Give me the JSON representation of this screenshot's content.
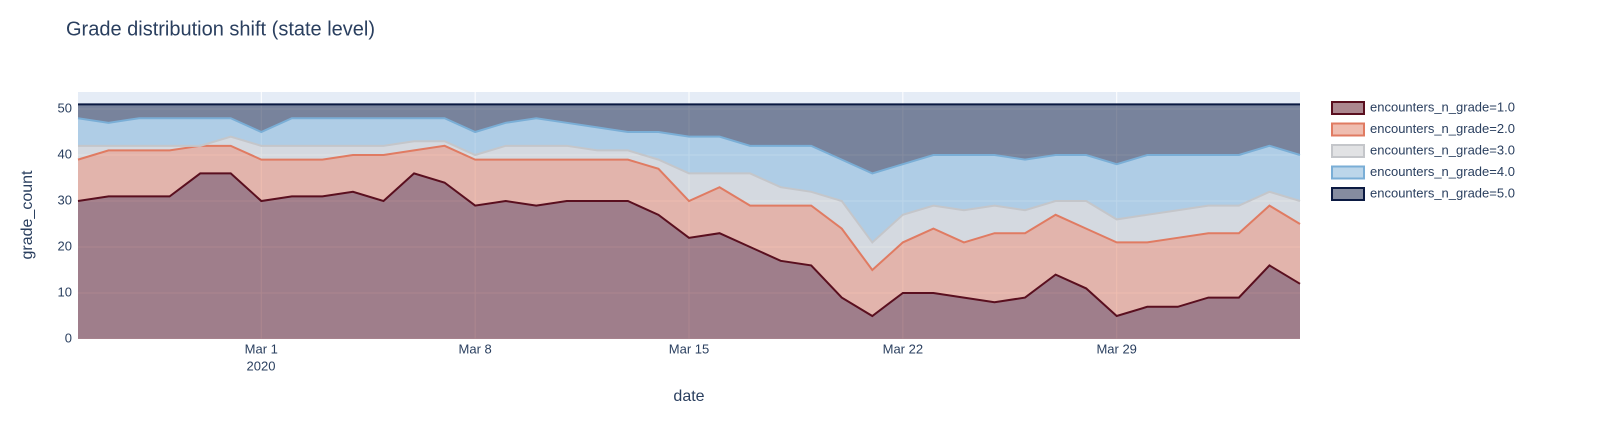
{
  "chart_data": {
    "type": "stacked_area",
    "title": "Grade distribution shift (state level)",
    "x_label": "date",
    "y_label": "grade_count",
    "x": [
      "2020-02-24",
      "2020-02-25",
      "2020-02-26",
      "2020-02-27",
      "2020-02-28",
      "2020-02-29",
      "2020-03-01",
      "2020-03-02",
      "2020-03-03",
      "2020-03-04",
      "2020-03-05",
      "2020-03-06",
      "2020-03-07",
      "2020-03-08",
      "2020-03-09",
      "2020-03-10",
      "2020-03-11",
      "2020-03-12",
      "2020-03-13",
      "2020-03-14",
      "2020-03-15",
      "2020-03-16",
      "2020-03-17",
      "2020-03-18",
      "2020-03-19",
      "2020-03-20",
      "2020-03-21",
      "2020-03-22",
      "2020-03-23",
      "2020-03-24",
      "2020-03-25",
      "2020-03-26",
      "2020-03-27",
      "2020-03-28",
      "2020-03-29",
      "2020-03-30",
      "2020-03-31",
      "2020-04-01",
      "2020-04-02",
      "2020-04-03",
      "2020-04-04"
    ],
    "series": [
      {
        "name": "encounters_n_grade=1.0",
        "color": "#5a0f1f",
        "values": [
          30,
          31,
          31,
          31,
          36,
          36,
          30,
          31,
          31,
          32,
          30,
          36,
          34,
          29,
          30,
          29,
          30,
          30,
          30,
          27,
          22,
          23,
          20,
          17,
          16,
          9,
          5,
          10,
          10,
          9,
          8,
          9,
          14,
          11,
          5,
          7,
          7,
          9,
          9,
          16,
          12
        ]
      },
      {
        "name": "encounters_n_grade=2.0",
        "color": "#e07b62",
        "values": [
          9,
          10,
          10,
          10,
          6,
          6,
          9,
          8,
          8,
          8,
          10,
          5,
          8,
          10,
          9,
          10,
          9,
          9,
          9,
          10,
          8,
          10,
          9,
          12,
          13,
          15,
          10,
          11,
          14,
          12,
          15,
          14,
          13,
          13,
          16,
          14,
          15,
          14,
          14,
          13,
          13
        ]
      },
      {
        "name": "encounters_n_grade=3.0",
        "color": "#c4c6ca",
        "values": [
          3,
          1,
          1,
          1,
          0,
          2,
          3,
          3,
          3,
          2,
          2,
          2,
          1,
          1,
          3,
          3,
          3,
          2,
          2,
          2,
          6,
          3,
          7,
          4,
          3,
          6,
          6,
          6,
          5,
          7,
          6,
          5,
          3,
          6,
          5,
          6,
          6,
          6,
          6,
          3,
          5
        ]
      },
      {
        "name": "encounters_n_grade=4.0",
        "color": "#7aaed6",
        "values": [
          6,
          5,
          6,
          6,
          6,
          4,
          3,
          6,
          6,
          6,
          6,
          5,
          5,
          5,
          5,
          6,
          5,
          5,
          4,
          6,
          8,
          8,
          6,
          9,
          10,
          9,
          15,
          11,
          11,
          12,
          11,
          11,
          10,
          10,
          12,
          13,
          12,
          11,
          11,
          10,
          10
        ]
      },
      {
        "name": "encounters_n_grade=5.0",
        "color": "#0b1a42",
        "values": [
          3,
          4,
          3,
          3,
          3,
          3,
          6,
          3,
          3,
          3,
          3,
          3,
          3,
          6,
          4,
          3,
          4,
          5,
          6,
          6,
          7,
          7,
          9,
          9,
          9,
          12,
          15,
          13,
          11,
          11,
          11,
          12,
          11,
          11,
          13,
          11,
          11,
          11,
          11,
          9,
          11
        ]
      }
    ],
    "xlim": [
      "2020-02-24",
      "2020-04-04"
    ],
    "xticks": [
      {
        "value": "2020-03-01",
        "label": "Mar 1"
      },
      {
        "value": "2020-03-08",
        "label": "Mar 8"
      },
      {
        "value": "2020-03-15",
        "label": "Mar 15"
      },
      {
        "value": "2020-03-22",
        "label": "Mar 22"
      },
      {
        "value": "2020-03-29",
        "label": "Mar 29"
      }
    ],
    "x_year_label": "2020",
    "ylim": [
      0,
      53.7
    ],
    "yticks": [
      0,
      10,
      20,
      30,
      40,
      50
    ],
    "grid": true
  }
}
